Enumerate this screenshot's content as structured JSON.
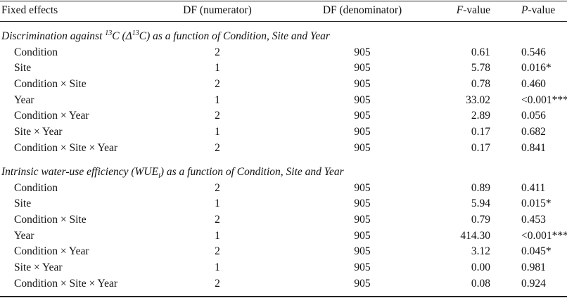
{
  "table": {
    "header": [
      {
        "text": "Fixed effects"
      },
      {
        "text": "DF (numerator)"
      },
      {
        "text": "DF (denominator)"
      },
      {
        "em": "F",
        "rest": "-value"
      },
      {
        "em": "P",
        "rest": "-value"
      }
    ],
    "sections": [
      {
        "title": [
          {
            "text": "Discrimination against ",
            "style": "normal"
          },
          {
            "text": "13",
            "style": "sup"
          },
          {
            "text": "C (Δ",
            "style": "normal"
          },
          {
            "text": "13",
            "style": "sup"
          },
          {
            "text": "C) as a function of Condition, Site and Year",
            "style": "normal"
          }
        ],
        "rows": [
          [
            "Condition",
            "2",
            "905",
            "0.61",
            "0.546"
          ],
          [
            "Site",
            "1",
            "905",
            "5.78",
            "0.016*"
          ],
          [
            "Condition × Site",
            "2",
            "905",
            "0.78",
            "0.460"
          ],
          [
            "Year",
            "1",
            "905",
            "33.02",
            "<0.001***"
          ],
          [
            "Condition × Year",
            "2",
            "905",
            "2.89",
            "0.056"
          ],
          [
            "Site × Year",
            "1",
            "905",
            "0.17",
            "0.682"
          ],
          [
            "Condition × Site × Year",
            "2",
            "905",
            "0.17",
            "0.841"
          ]
        ]
      },
      {
        "title": [
          {
            "text": "Intrinsic water-use efficiency (WUE",
            "style": "normal"
          },
          {
            "text": "i",
            "style": "sub"
          },
          {
            "text": ") as a function of Condition, Site and Year",
            "style": "normal"
          }
        ],
        "rows": [
          [
            "Condition",
            "2",
            "905",
            "0.89",
            "0.411"
          ],
          [
            "Site",
            "1",
            "905",
            "5.94",
            "0.015*"
          ],
          [
            "Condition × Site",
            "2",
            "905",
            "0.79",
            "0.453"
          ],
          [
            "Year",
            "1",
            "905",
            "414.30",
            "<0.001***"
          ],
          [
            "Condition × Year",
            "2",
            "905",
            "3.12",
            "0.045*"
          ],
          [
            "Site × Year",
            "1",
            "905",
            "0.00",
            "0.981"
          ],
          [
            "Condition × Site × Year",
            "2",
            "905",
            "0.08",
            "0.924"
          ]
        ]
      }
    ]
  }
}
